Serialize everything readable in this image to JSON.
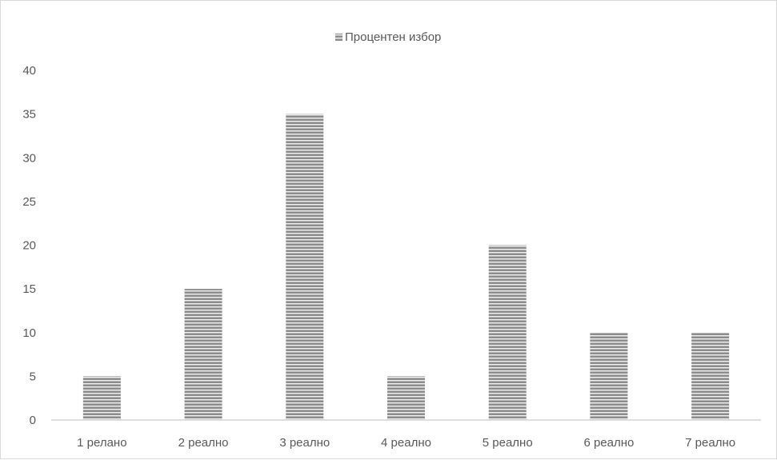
{
  "chart_data": {
    "type": "bar",
    "categories": [
      "1 релано",
      "2 реално",
      "3 реално",
      "4 реално",
      "5 реално",
      "6 реално",
      "7 реално"
    ],
    "series": [
      {
        "name": "Процентен избор",
        "values": [
          5,
          15,
          35,
          5,
          20,
          10,
          10
        ]
      }
    ],
    "ylim": [
      0,
      40
    ],
    "yticks": [
      0,
      5,
      10,
      15,
      20,
      25,
      30,
      35,
      40
    ],
    "grid": false,
    "legend_position": "top-center",
    "bar_color": "#8c8c8c",
    "bar_stripe_color": "#ffffff"
  }
}
